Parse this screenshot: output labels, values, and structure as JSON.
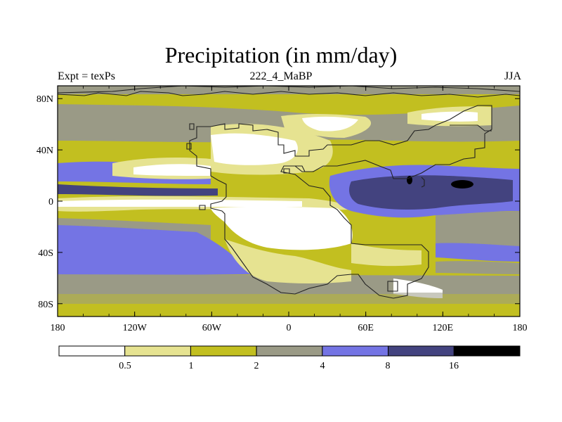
{
  "title": "Precipitation (in mm/day)",
  "left_label": "Expt = texPs",
  "center_label": "222_4_MaBP",
  "right_label": "JJA",
  "map": {
    "projection": "cylindrical equidistant",
    "lon_range": [
      -180,
      180
    ],
    "lat_range": [
      -90,
      90
    ],
    "x_ticks": [
      "180",
      "120W",
      "60W",
      "0",
      "60E",
      "120E",
      "180"
    ],
    "y_ticks": [
      "80N",
      "40N",
      "0",
      "40S",
      "80S"
    ]
  },
  "colorbar": {
    "levels": [
      "0.5",
      "1",
      "2",
      "4",
      "8",
      "16"
    ],
    "colors": [
      "#ffffff",
      "#e6e391",
      "#c2bf20",
      "#9a9a86",
      "#7474e4",
      "#43437f",
      "#000000"
    ]
  }
}
